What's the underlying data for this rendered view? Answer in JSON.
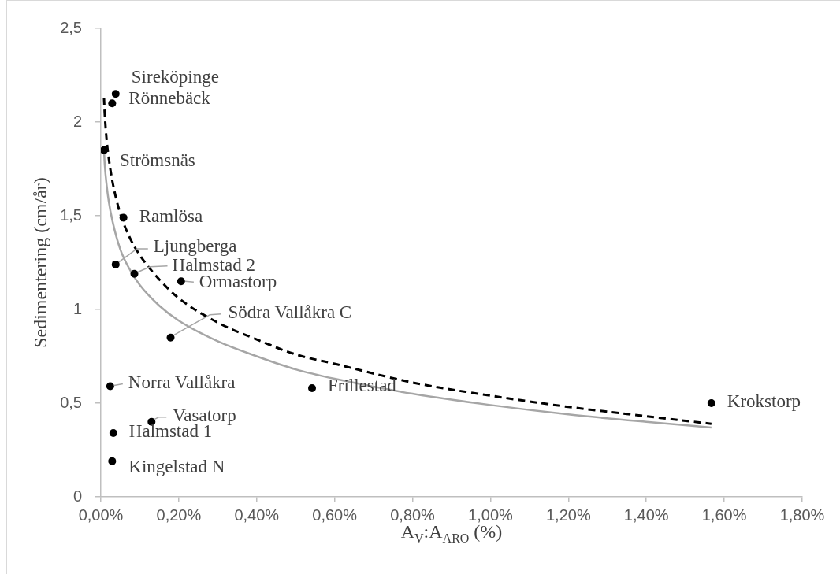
{
  "chart_data": {
    "type": "scatter",
    "xlabel": "A$_{V}$:A$_{ARO}$ (%)",
    "ylabel": "Sedimentering (cm/år)",
    "xlim": [
      0,
      1.8
    ],
    "xticks": [
      {
        "value": 0,
        "label": "0,00%"
      },
      {
        "value": 0.2,
        "label": "0,20%"
      },
      {
        "value": 0.4,
        "label": "0,40%"
      },
      {
        "value": 0.6,
        "label": "0,60%"
      },
      {
        "value": 0.8,
        "label": "0,80%"
      },
      {
        "value": 1.0,
        "label": "1,00%"
      },
      {
        "value": 1.2,
        "label": "1,20%"
      },
      {
        "value": 1.4,
        "label": "1,40%"
      },
      {
        "value": 1.6,
        "label": "1,60%"
      },
      {
        "value": 1.8,
        "label": "1,80%"
      }
    ],
    "ylim": [
      0,
      2.5
    ],
    "yticks": [
      0,
      {
        "value": 0.5,
        "label": "0,5"
      },
      1,
      {
        "value": 1.5,
        "label": "1,5"
      },
      2,
      {
        "value": 2.5,
        "label": "2,5"
      }
    ],
    "marker": "circle",
    "series": [
      {
        "type": "scatter",
        "color": "#000000",
        "x": [
          0.038,
          0.029,
          0.008,
          0.058,
          0.038,
          0.086,
          0.206,
          0.179,
          0.024,
          0.13,
          0.032,
          0.029,
          0.542,
          1.567
        ],
        "values": [
          2.15,
          2.1,
          1.85,
          1.49,
          1.24,
          1.19,
          1.15,
          0.85,
          0.59,
          0.4,
          0.34,
          0.19,
          0.58,
          0.5
        ]
      },
      {
        "type": "line",
        "color": "#a6a6a6",
        "line_style": "solid",
        "marker": "none",
        "x": [
          0.008,
          0.01,
          0.015,
          0.02,
          0.03,
          0.05,
          0.075,
          0.1,
          0.15,
          0.2,
          0.3,
          0.4,
          0.5,
          0.6,
          0.8,
          1.0,
          1.2,
          1.4,
          1.567
        ],
        "values": [
          1.85,
          1.77,
          1.66,
          1.58,
          1.47,
          1.32,
          1.21,
          1.13,
          1.02,
          0.94,
          0.83,
          0.75,
          0.68,
          0.63,
          0.55,
          0.49,
          0.44,
          0.4,
          0.37
        ]
      },
      {
        "type": "line",
        "color": "#000000",
        "line_style": "dashed",
        "marker": "none",
        "x": [
          0.008,
          0.01,
          0.015,
          0.02,
          0.03,
          0.05,
          0.075,
          0.1,
          0.15,
          0.2,
          0.3,
          0.4,
          0.5,
          0.6,
          0.8,
          1.0,
          1.2,
          1.4,
          1.567
        ],
        "values": [
          2.13,
          2.04,
          1.9,
          1.81,
          1.68,
          1.51,
          1.38,
          1.29,
          1.16,
          1.06,
          0.93,
          0.84,
          0.76,
          0.71,
          0.61,
          0.54,
          0.48,
          0.43,
          0.39
        ]
      }
    ],
    "annotations": [
      {
        "text": "Sireköpinge",
        "x": 0.038,
        "y": 2.15
      },
      {
        "text": "Rönnebäck",
        "x": 0.029,
        "y": 2.1
      },
      {
        "text": "Strömsnäs",
        "x": 0.008,
        "y": 1.85
      },
      {
        "text": "Ramlösa",
        "x": 0.058,
        "y": 1.49
      },
      {
        "text": "Ljungberga",
        "x": 0.038,
        "y": 1.24
      },
      {
        "text": "Halmstad 2",
        "x": 0.086,
        "y": 1.19
      },
      {
        "text": "Ormastorp",
        "x": 0.206,
        "y": 1.15
      },
      {
        "text": "Södra Vallåkra C",
        "x": 0.179,
        "y": 0.85
      },
      {
        "text": "Norra Vallåkra",
        "x": 0.024,
        "y": 0.59
      },
      {
        "text": "Vasatorp",
        "x": 0.13,
        "y": 0.4
      },
      {
        "text": "Halmstad 1",
        "x": 0.032,
        "y": 0.34
      },
      {
        "text": "Kingelstad N",
        "x": 0.029,
        "y": 0.19
      },
      {
        "text": "Frillestad",
        "x": 0.542,
        "y": 0.58
      },
      {
        "text": "Krokstorp",
        "x": 1.567,
        "y": 0.5
      }
    ]
  }
}
